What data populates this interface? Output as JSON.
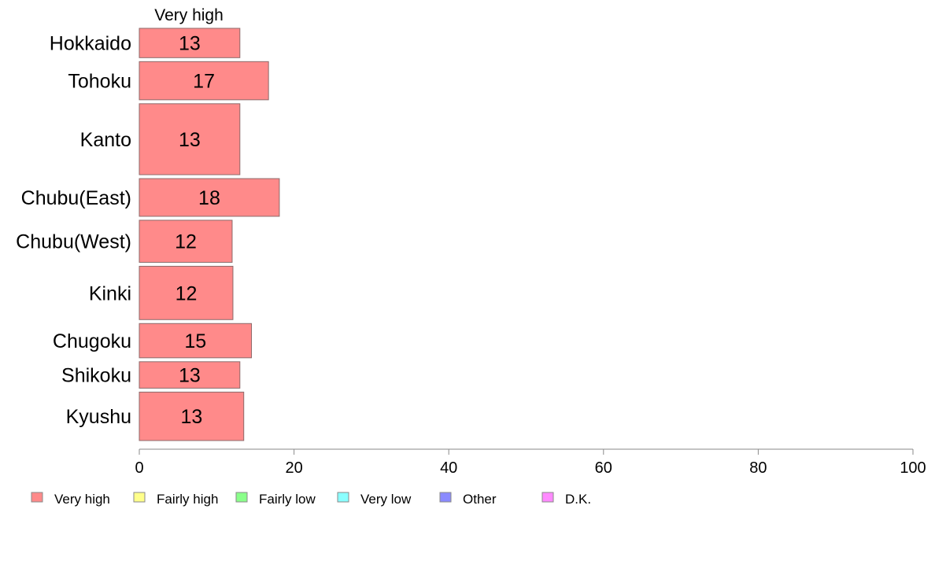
{
  "chart_data": {
    "type": "bar",
    "orientation": "horizontal",
    "stacked": true,
    "xlim": [
      0,
      100
    ],
    "x_ticks": [
      0,
      20,
      40,
      60,
      80,
      100
    ],
    "visible_series_label": "Very high",
    "categories": [
      "Hokkaido",
      "Tohoku",
      "Kanto",
      "Chubu(East)",
      "Chubu(West)",
      "Kinki",
      "Chugoku",
      "Shikoku",
      "Kyushu"
    ],
    "category_weights": [
      6.0,
      7.8,
      14.5,
      7.7,
      8.6,
      10.9,
      7.0,
      5.4,
      9.9
    ],
    "series": [
      {
        "name": "Very high",
        "color": "#ff8a8a",
        "values": [
          13,
          17,
          13,
          18,
          12,
          12,
          15,
          13,
          13
        ],
        "display_values": [
          13.0,
          16.7,
          13.0,
          18.1,
          12.0,
          12.1,
          14.5,
          13.0,
          13.5
        ]
      }
    ],
    "legend": {
      "position": "bottom",
      "items": [
        {
          "label": "Very high",
          "color": "#ff8a8a"
        },
        {
          "label": "Fairly high",
          "color": "#ffff8a"
        },
        {
          "label": "Fairly low",
          "color": "#8aff8a"
        },
        {
          "label": "Very low",
          "color": "#8affff"
        },
        {
          "label": "Other",
          "color": "#8a8aff"
        },
        {
          "label": "D.K.",
          "color": "#ff8aff"
        }
      ]
    },
    "grid": false
  }
}
